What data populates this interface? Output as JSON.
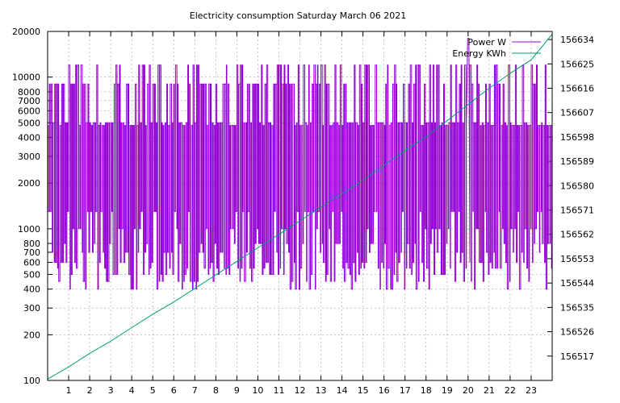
{
  "chart_data": {
    "type": "line",
    "title": "Electricity consumption Saturday March 06 2021",
    "x_ticks": [
      "1",
      "2",
      "3",
      "4",
      "5",
      "6",
      "7",
      "8",
      "9",
      "10",
      "11",
      "12",
      "13",
      "14",
      "15",
      "16",
      "17",
      "18",
      "19",
      "20",
      "21",
      "22",
      "23"
    ],
    "xlim": [
      0,
      24
    ],
    "y_scale": "log",
    "ylim": [
      100,
      20000
    ],
    "y_ticks": [
      100,
      200,
      300,
      400,
      500,
      600,
      700,
      800,
      1000,
      2000,
      3000,
      4000,
      5000,
      6000,
      7000,
      8000,
      10000,
      20000
    ],
    "y_tick_labels": [
      "100",
      "200",
      "300",
      "400",
      "500",
      "600",
      "700",
      "800",
      "1000",
      "2000",
      "3000",
      "4000",
      "5000",
      "6000",
      "7000",
      "8000",
      "10000",
      "20000"
    ],
    "y2_scale": "linear",
    "y2lim": [
      156508,
      156637
    ],
    "y2_ticks": [
      156517,
      156526,
      156535,
      156544,
      156553,
      156562,
      156571,
      156580,
      156589,
      156598,
      156607,
      156616,
      156625,
      156634
    ],
    "y2_tick_labels": [
      "156517",
      "156526",
      "156535",
      "156544",
      "156553",
      "156562",
      "156571",
      "156580",
      "156589",
      "156598",
      "156607",
      "156616",
      "156625",
      "156634"
    ],
    "grid": true,
    "legend_position": "top-right",
    "series": [
      {
        "name": "Power W",
        "axis": "y",
        "color": "#9400d3",
        "base_levels": [
          5000,
          9000,
          12000,
          4800
        ],
        "low_levels": [
          550,
          600,
          450,
          500,
          700,
          400,
          800,
          1000,
          1300
        ],
        "pulses_per_hour": 12,
        "peak": 18000,
        "peak_x": 20.0
      },
      {
        "name": "Energy KWh",
        "axis": "y2",
        "color": "#009e73",
        "points": [
          [
            0,
            156508.5
          ],
          [
            1,
            156513
          ],
          [
            2,
            156518
          ],
          [
            3,
            156522.5
          ],
          [
            4,
            156527.5
          ],
          [
            5,
            156532.5
          ],
          [
            6,
            156537
          ],
          [
            7,
            156542
          ],
          [
            8,
            156547
          ],
          [
            9,
            156552
          ],
          [
            10,
            156557
          ],
          [
            11,
            156562
          ],
          [
            12,
            156567
          ],
          [
            13,
            156572
          ],
          [
            14,
            156577
          ],
          [
            15,
            156582
          ],
          [
            16,
            156587.5
          ],
          [
            17,
            156593
          ],
          [
            18,
            156598
          ],
          [
            19,
            156604
          ],
          [
            20,
            156610
          ],
          [
            21,
            156616
          ],
          [
            22,
            156621.5
          ],
          [
            23,
            156626.5
          ],
          [
            24,
            156636
          ]
        ]
      }
    ]
  }
}
